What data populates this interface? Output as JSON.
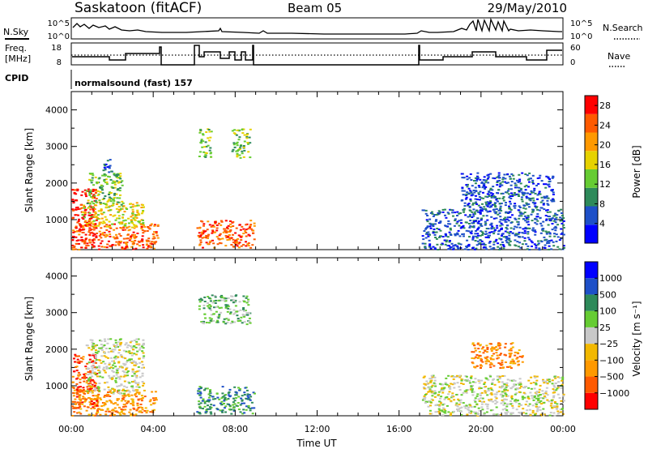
{
  "header": {
    "station": "Saskatoon (fitACF)",
    "beam": "Beam 05",
    "date": "29/May/2010"
  },
  "top_panels": {
    "nsky_label": "N.Sky",
    "nsky_ticks": [
      "10^5",
      "10^0"
    ],
    "nsearch_label": "N.Search",
    "freq_label_1": "Freq.",
    "freq_label_2": "[MHz]",
    "freq_ticks": [
      "18",
      "8"
    ],
    "nave_ticks": [
      "60",
      "0"
    ],
    "nave_label": "Nave",
    "cpid_label": "CPID",
    "cpid_text": "normalsound (fast) 157"
  },
  "colors": {
    "power_scale": [
      "#0000ff",
      "#1e50c8",
      "#2e8a5a",
      "#66cc33",
      "#e6d200",
      "#ff9900",
      "#ff5a00",
      "#ff0000"
    ],
    "velocity_scale": [
      "#ff0000",
      "#ff5a00",
      "#ff9900",
      "#f2b800",
      "#c8c8c8",
      "#66cc33",
      "#2e8a5a",
      "#1e50c8",
      "#0000ff"
    ]
  },
  "chart_data": [
    {
      "type": "heatmap",
      "title": "Power",
      "xlabel": "",
      "ylabel": "Slant Range [km]",
      "x_ticks": [
        "00:00",
        "04:00",
        "08:00",
        "12:00",
        "16:00",
        "20:00",
        "00:00"
      ],
      "y_ticks": [
        "1000",
        "2000",
        "3000",
        "4000"
      ],
      "xlim_hours": [
        0,
        24
      ],
      "ylim_km": [
        180,
        4500
      ],
      "colorbar_label": "Power [dB]",
      "colorbar_ticks": [
        "4",
        "8",
        "12",
        "16",
        "20",
        "24",
        "28"
      ],
      "colorbar_range": [
        0,
        30
      ],
      "scatter_regions": [
        {
          "t0": 0.0,
          "t1": 4.2,
          "r0": 200,
          "r1": 900,
          "level": 6
        },
        {
          "t0": 0.0,
          "t1": 1.2,
          "r0": 400,
          "r1": 1900,
          "level": 7
        },
        {
          "t0": 0.5,
          "t1": 3.5,
          "r0": 800,
          "r1": 1500,
          "level": 4
        },
        {
          "t0": 0.7,
          "t1": 2.5,
          "r0": 1400,
          "r1": 2300,
          "level": 3
        },
        {
          "t0": 1.5,
          "t1": 2.0,
          "r0": 2300,
          "r1": 2700,
          "level": 1
        },
        {
          "t0": 6.1,
          "t1": 8.9,
          "r0": 250,
          "r1": 1000,
          "level": 6
        },
        {
          "t0": 6.2,
          "t1": 6.8,
          "r0": 2700,
          "r1": 3500,
          "level": 3
        },
        {
          "t0": 7.8,
          "t1": 8.7,
          "r0": 2700,
          "r1": 3500,
          "level": 3
        },
        {
          "t0": 17.1,
          "t1": 24.0,
          "r0": 200,
          "r1": 1300,
          "level": 1
        },
        {
          "t0": 19.0,
          "t1": 23.5,
          "r0": 1300,
          "r1": 2300,
          "level": 1
        }
      ]
    },
    {
      "type": "heatmap",
      "title": "Velocity",
      "xlabel": "Time UT",
      "ylabel": "Slant Range [km]",
      "x_ticks": [
        "00:00",
        "04:00",
        "08:00",
        "12:00",
        "16:00",
        "20:00",
        "00:00"
      ],
      "y_ticks": [
        "1000",
        "2000",
        "3000",
        "4000"
      ],
      "xlim_hours": [
        0,
        24
      ],
      "ylim_km": [
        180,
        4500
      ],
      "colorbar_label": "Velocity [m s⁻¹]",
      "colorbar_ticks": [
        "1000",
        "500",
        "100",
        "25",
        "−25",
        "−100",
        "−500",
        "−1000"
      ],
      "scatter_regions": [
        {
          "t0": 0.0,
          "t1": 4.2,
          "r0": 200,
          "r1": 900,
          "level": 2
        },
        {
          "t0": 0.0,
          "t1": 1.2,
          "r0": 400,
          "r1": 1900,
          "level": 1
        },
        {
          "t0": 0.7,
          "t1": 3.5,
          "r0": 800,
          "r1": 2300,
          "level": 4
        },
        {
          "t0": 6.1,
          "t1": 8.9,
          "r0": 250,
          "r1": 1000,
          "level": 6
        },
        {
          "t0": 6.2,
          "t1": 8.7,
          "r0": 2700,
          "r1": 3500,
          "level": 5
        },
        {
          "t0": 17.1,
          "t1": 24.0,
          "r0": 200,
          "r1": 1300,
          "level": 4
        },
        {
          "t0": 19.5,
          "t1": 22.0,
          "r0": 1500,
          "r1": 2200,
          "level": 2
        }
      ]
    }
  ]
}
